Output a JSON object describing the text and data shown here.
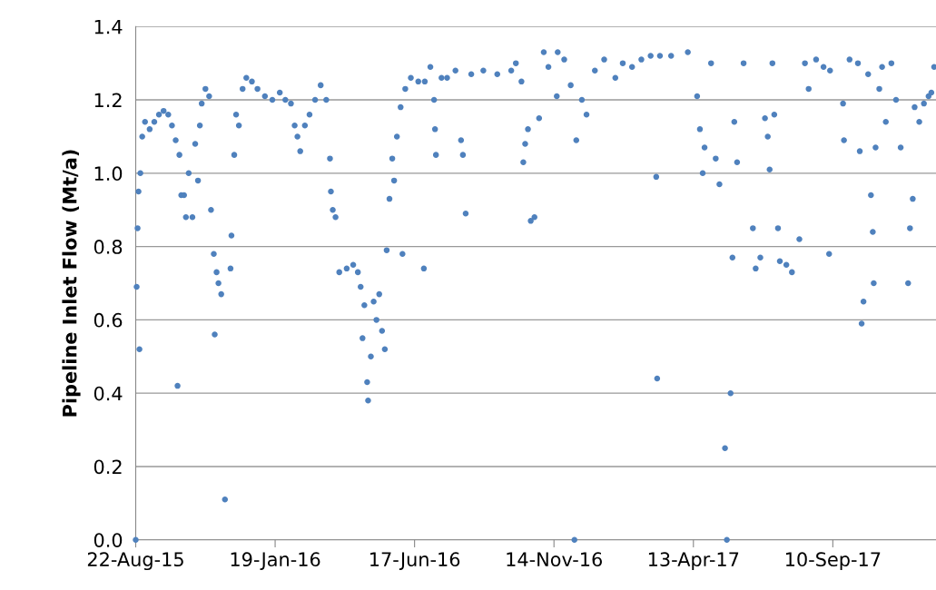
{
  "chart_data": {
    "type": "scatter",
    "ylabel": "Pipeline Inlet Flow (Mt/a)",
    "xlim": [
      "2015-08-22",
      "2017-12-30"
    ],
    "xticks": [
      {
        "value": "2015-08-22",
        "label": "22-Aug-15"
      },
      {
        "value": "2016-01-19",
        "label": "19-Jan-16"
      },
      {
        "value": "2016-06-17",
        "label": "17-Jun-16"
      },
      {
        "value": "2016-11-14",
        "label": "14-Nov-16"
      },
      {
        "value": "2017-04-13",
        "label": "13-Apr-17"
      },
      {
        "value": "2017-09-10",
        "label": "10-Sep-17"
      }
    ],
    "ylim": [
      0,
      1.4
    ],
    "yticks": [
      {
        "value": 0,
        "label": "0.0"
      },
      {
        "value": 0.2,
        "label": "0.2"
      },
      {
        "value": 0.4,
        "label": "0.4"
      },
      {
        "value": 0.6,
        "label": "0.6"
      },
      {
        "value": 0.8,
        "label": "0.8"
      },
      {
        "value": 1.0,
        "label": "1.0"
      },
      {
        "value": 1.2,
        "label": "1.2"
      },
      {
        "value": 1.4,
        "label": "1.4"
      }
    ],
    "grid": "y",
    "marker": "circle",
    "series": [
      {
        "color": "#4f81bd",
        "x": [
          "2015-08-22",
          "2015-08-23",
          "2015-08-24",
          "2015-08-25",
          "2015-08-26",
          "2015-08-27",
          "2015-08-29",
          "2015-09-01",
          "2015-09-06",
          "2015-09-11",
          "2015-09-16",
          "2015-09-21",
          "2015-09-26",
          "2015-09-30",
          "2015-10-04",
          "2015-10-06",
          "2015-10-08",
          "2015-10-10",
          "2015-10-13",
          "2015-10-15",
          "2015-10-18",
          "2015-10-22",
          "2015-10-25",
          "2015-10-28",
          "2015-10-30",
          "2015-11-01",
          "2015-11-05",
          "2015-11-09",
          "2015-11-11",
          "2015-11-14",
          "2015-11-15",
          "2015-11-17",
          "2015-11-19",
          "2015-11-22",
          "2015-11-26",
          "2015-12-02",
          "2015-12-03",
          "2015-12-06",
          "2015-12-08",
          "2015-12-11",
          "2015-12-15",
          "2015-12-19",
          "2015-12-25",
          "2015-12-31",
          "2016-01-08",
          "2016-01-16",
          "2016-01-24",
          "2016-01-30",
          "2016-02-05",
          "2016-02-09",
          "2016-02-12",
          "2016-02-15",
          "2016-02-20",
          "2016-02-25",
          "2016-03-02",
          "2016-03-08",
          "2016-03-14",
          "2016-03-18",
          "2016-03-19",
          "2016-03-21",
          "2016-03-24",
          "2016-03-28",
          "2016-04-05",
          "2016-04-12",
          "2016-04-17",
          "2016-04-20",
          "2016-04-22",
          "2016-04-24",
          "2016-04-27",
          "2016-04-28",
          "2016-05-01",
          "2016-05-04",
          "2016-05-07",
          "2016-05-10",
          "2016-05-13",
          "2016-05-16",
          "2016-05-18",
          "2016-05-21",
          "2016-05-24",
          "2016-05-26",
          "2016-05-29",
          "2016-06-02",
          "2016-06-04",
          "2016-06-07",
          "2016-06-13",
          "2016-06-21",
          "2016-06-27",
          "2016-06-28",
          "2016-07-04",
          "2016-07-08",
          "2016-07-09",
          "2016-07-10",
          "2016-07-16",
          "2016-07-22",
          "2016-07-31",
          "2016-08-06",
          "2016-08-08",
          "2016-08-11",
          "2016-08-17",
          "2016-08-30",
          "2016-09-14",
          "2016-09-29",
          "2016-10-04",
          "2016-10-10",
          "2016-10-12",
          "2016-10-14",
          "2016-10-17",
          "2016-10-20",
          "2016-10-24",
          "2016-10-29",
          "2016-11-03",
          "2016-11-08",
          "2016-11-17",
          "2016-11-18",
          "2016-11-25",
          "2016-12-02",
          "2016-12-06",
          "2016-12-08",
          "2016-12-14",
          "2016-12-19",
          "2016-12-28",
          "2017-01-07",
          "2017-01-19",
          "2017-01-27",
          "2017-02-06",
          "2017-02-16",
          "2017-02-26",
          "2017-03-04",
          "2017-03-05",
          "2017-03-08",
          "2017-03-20",
          "2017-04-07",
          "2017-04-17",
          "2017-04-20",
          "2017-04-23",
          "2017-04-25",
          "2017-05-02",
          "2017-05-07",
          "2017-05-11",
          "2017-05-17",
          "2017-05-19",
          "2017-05-23",
          "2017-05-25",
          "2017-05-27",
          "2017-05-30",
          "2017-06-06",
          "2017-06-16",
          "2017-06-19",
          "2017-06-24",
          "2017-06-29",
          "2017-07-02",
          "2017-07-04",
          "2017-07-07",
          "2017-07-09",
          "2017-07-13",
          "2017-07-15",
          "2017-07-22",
          "2017-07-28",
          "2017-08-05",
          "2017-08-11",
          "2017-08-15",
          "2017-08-23",
          "2017-08-31",
          "2017-09-06",
          "2017-09-07",
          "2017-09-21",
          "2017-09-22",
          "2017-09-28",
          "2017-10-07",
          "2017-10-09",
          "2017-10-11",
          "2017-10-13",
          "2017-10-18",
          "2017-10-21",
          "2017-10-23",
          "2017-10-24",
          "2017-10-26",
          "2017-10-30",
          "2017-11-02",
          "2017-11-06",
          "2017-11-12",
          "2017-11-17",
          "2017-11-22",
          "2017-11-30",
          "2017-12-02",
          "2017-12-05",
          "2017-12-07",
          "2017-12-12",
          "2017-12-17",
          "2017-12-22",
          "2017-12-25",
          "2017-12-28"
        ],
        "values": [
          0.0,
          0.69,
          0.85,
          0.95,
          0.52,
          1.0,
          1.1,
          1.14,
          1.12,
          1.14,
          1.16,
          1.17,
          1.16,
          1.13,
          1.09,
          0.42,
          1.05,
          0.94,
          0.94,
          0.88,
          1.0,
          0.88,
          1.08,
          0.98,
          1.13,
          1.19,
          1.23,
          1.21,
          0.9,
          0.78,
          0.56,
          0.73,
          0.7,
          0.67,
          0.11,
          0.74,
          0.83,
          1.05,
          1.16,
          1.13,
          1.23,
          1.26,
          1.25,
          1.23,
          1.21,
          1.2,
          1.22,
          1.2,
          1.19,
          1.13,
          1.1,
          1.06,
          1.13,
          1.16,
          1.2,
          1.24,
          1.2,
          1.04,
          0.95,
          0.9,
          0.88,
          0.73,
          0.74,
          0.75,
          0.73,
          0.69,
          0.55,
          0.64,
          0.43,
          0.38,
          0.5,
          0.65,
          0.6,
          0.67,
          0.57,
          0.52,
          0.79,
          0.93,
          1.04,
          0.98,
          1.1,
          1.18,
          0.78,
          1.23,
          1.26,
          1.25,
          0.74,
          1.25,
          1.29,
          1.2,
          1.12,
          1.05,
          1.26,
          1.26,
          1.28,
          1.09,
          1.05,
          0.89,
          1.27,
          1.28,
          1.27,
          1.28,
          1.3,
          1.25,
          1.03,
          1.08,
          1.12,
          0.87,
          0.88,
          1.15,
          1.33,
          1.29,
          1.21,
          1.33,
          1.31,
          1.24,
          0.0,
          1.09,
          1.2,
          1.16,
          1.28,
          1.31,
          1.26,
          1.3,
          1.29,
          1.31,
          1.32,
          0.99,
          0.44,
          1.32,
          1.32,
          1.33,
          1.21,
          1.12,
          1.0,
          1.07,
          1.3,
          1.04,
          0.97,
          0.25,
          0.0,
          0.4,
          0.77,
          1.14,
          1.03,
          1.3,
          0.85,
          0.74,
          0.77,
          1.15,
          1.1,
          1.01,
          1.3,
          1.16,
          0.85,
          0.76,
          0.75,
          0.73,
          0.82,
          1.3,
          1.23,
          1.31,
          1.29,
          0.78,
          1.28,
          1.19,
          1.09,
          1.31,
          1.3,
          1.06,
          0.59,
          0.65,
          1.27,
          0.94,
          0.84,
          0.7,
          1.07,
          1.23,
          1.29,
          1.14,
          1.3,
          1.2,
          1.07,
          0.7,
          0.85,
          0.93,
          1.18,
          1.14,
          1.19,
          1.21,
          1.22,
          1.29
        ]
      }
    ]
  }
}
